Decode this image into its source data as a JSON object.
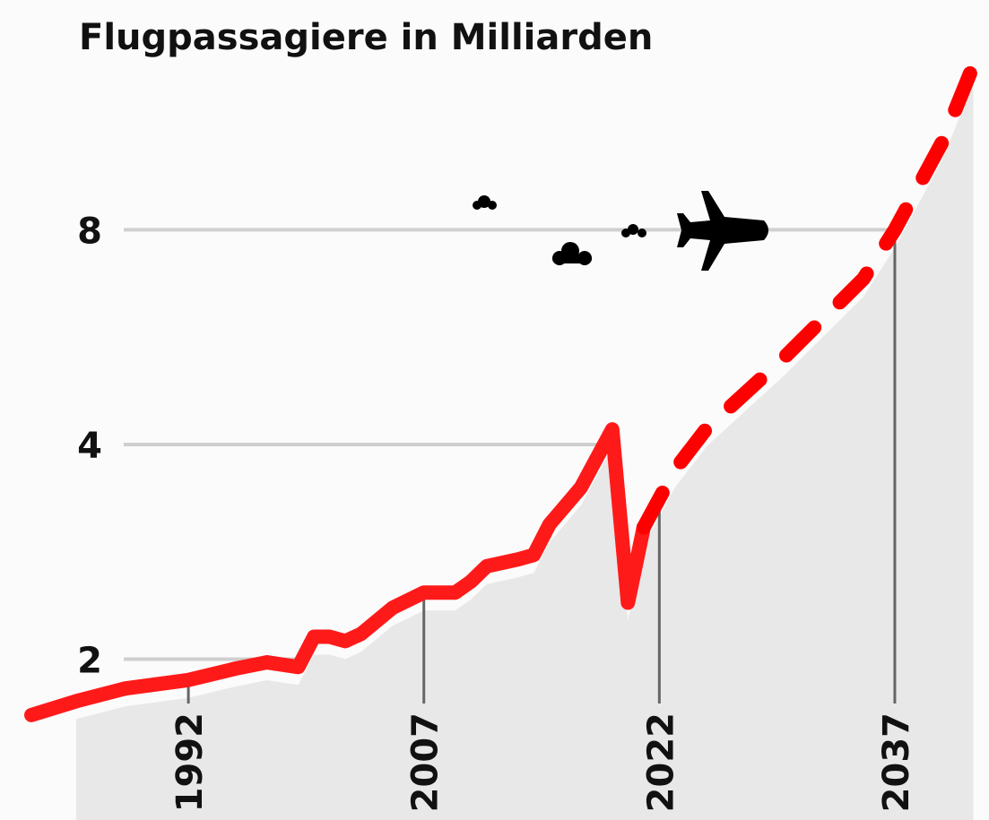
{
  "chart_data": {
    "type": "line",
    "title": "Flugpassagiere in Milliarden",
    "series": [
      {
        "color": "#ff1a1a",
        "dashed": false,
        "x": [
          1982,
          1985,
          1988,
          1992,
          1995,
          1997,
          1999,
          2000,
          2001,
          2002,
          2003,
          2005,
          2007,
          2009,
          2010,
          2011,
          2013,
          2014,
          2015,
          2017,
          2019,
          2020,
          2021
        ],
        "values": [
          1.67,
          1.75,
          1.82,
          1.87,
          1.94,
          1.98,
          1.95,
          2.15,
          2.15,
          2.12,
          2.17,
          2.36,
          2.48,
          2.48,
          2.57,
          2.7,
          2.76,
          2.8,
          3.09,
          3.48,
          4.2,
          2.4,
          3.06
        ]
      },
      {
        "color": "#ff0000",
        "dashed": true,
        "x": [
          2021,
          2023,
          2025,
          2030,
          2035,
          2037,
          2040,
          2042
        ],
        "values": [
          3.06,
          3.69,
          4.21,
          5.31,
          6.83,
          8,
          10.6,
          13.6
        ]
      }
    ],
    "xlim": [
      1980,
      2043
    ],
    "xticks": [
      1992,
      2007,
      2022,
      2037
    ],
    "ylim": [
      1.19,
      16.8
    ],
    "yticks": [
      2,
      4,
      8
    ],
    "log_y": true,
    "grid": true
  }
}
